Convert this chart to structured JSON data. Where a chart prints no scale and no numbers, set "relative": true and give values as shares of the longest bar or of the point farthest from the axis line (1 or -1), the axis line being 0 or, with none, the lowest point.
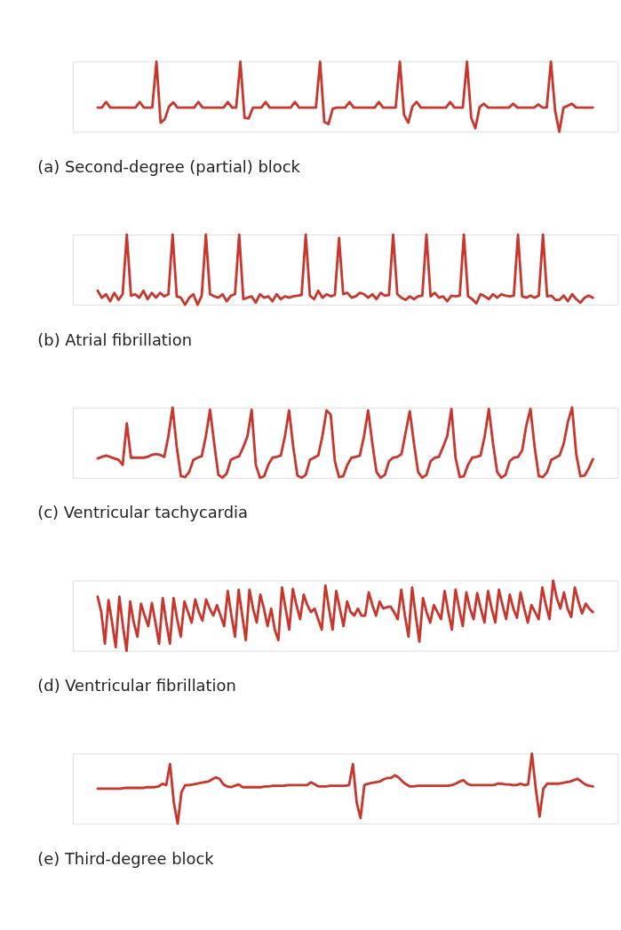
{
  "chart_data": [
    {
      "type": "line",
      "relative": true,
      "title": "(a)  Second-degree (partial) block",
      "grid": false,
      "marker": "none",
      "line_style": "solid",
      "categories": [
        null,
        null,
        null,
        null,
        null,
        null,
        null,
        null,
        null,
        null,
        null,
        null,
        null,
        null,
        null,
        null,
        null,
        null,
        null,
        null,
        null,
        null,
        null,
        null,
        null,
        null,
        null,
        null,
        null,
        null,
        null,
        null,
        null,
        null,
        null,
        null,
        null,
        null,
        null,
        null,
        null,
        null,
        null,
        null,
        null,
        null,
        null,
        null,
        null,
        null,
        null,
        null,
        null,
        null,
        null,
        null,
        null,
        null,
        null,
        null,
        null,
        null,
        null,
        null,
        null,
        null,
        null,
        null,
        null,
        null,
        null,
        null,
        null,
        null,
        null,
        null,
        null,
        null,
        null,
        null,
        null,
        null,
        null,
        null,
        null,
        null,
        null,
        null,
        null,
        null,
        null,
        null,
        null,
        null,
        null,
        null,
        null,
        null,
        null,
        null,
        null,
        null,
        null,
        null,
        null,
        null,
        null,
        null,
        null,
        null,
        null,
        null,
        null,
        null,
        null,
        null,
        null,
        null,
        null
      ],
      "series": [
        {
          "color": "#c8372d",
          "values": [
            0.345,
            0.345,
            0.425,
            0.345,
            0.345,
            0.345,
            0.345,
            0.345,
            0.345,
            0.345,
            0.425,
            0.345,
            0.345,
            0.345,
            1,
            0.13,
            0.18,
            0.36,
            0.42,
            0.345,
            0.345,
            0.345,
            0.345,
            0.345,
            0.425,
            0.345,
            0.345,
            0.345,
            0.345,
            0.345,
            0.345,
            0.425,
            0.345,
            0.345,
            1,
            0.2,
            0.19,
            0.345,
            0.345,
            0.345,
            0.425,
            0.345,
            0.345,
            0.345,
            0.345,
            0.345,
            0.345,
            0.425,
            0.345,
            0.345,
            0.345,
            0.345,
            0.345,
            1,
            0.14,
            0.11,
            0.33,
            0.345,
            0.345,
            0.345,
            0.425,
            0.345,
            0.345,
            0.345,
            0.345,
            0.345,
            0.345,
            0.425,
            0.345,
            0.345,
            0.345,
            0.345,
            1,
            0.24,
            0.13,
            0.36,
            0.425,
            0.345,
            0.345,
            0.345,
            0.345,
            0.345,
            0.345,
            0.345,
            0.425,
            0.345,
            0.345,
            0.345,
            1,
            0.2,
            0.05,
            0.35,
            0.4,
            0.345,
            0.345,
            0.345,
            0.345,
            0.345,
            0.345,
            0.4,
            0.345,
            0.345,
            0.345,
            0.345,
            0.345,
            0.39,
            0.345,
            0.345,
            1,
            0.3,
            0,
            0.345,
            0.37,
            0.4,
            0.345,
            0.345,
            0.345,
            0.345,
            0.345
          ]
        }
      ]
    },
    {
      "type": "line",
      "relative": true,
      "title": "(b)  Atrial fibrillation",
      "grid": false,
      "marker": "none",
      "line_style": "solid",
      "categories": [
        null,
        null,
        null,
        null,
        null,
        null,
        null,
        null,
        null,
        null,
        null,
        null,
        null,
        null,
        null,
        null,
        null,
        null,
        null,
        null,
        null,
        null,
        null,
        null,
        null,
        null,
        null,
        null,
        null,
        null,
        null,
        null,
        null,
        null,
        null,
        null,
        null,
        null,
        null,
        null,
        null,
        null,
        null,
        null,
        null,
        null,
        null,
        null,
        null,
        null,
        null,
        null,
        null,
        null,
        null,
        null,
        null,
        null,
        null,
        null,
        null,
        null,
        null,
        null,
        null,
        null,
        null,
        null,
        null,
        null,
        null,
        null,
        null,
        null,
        null,
        null,
        null,
        null,
        null,
        null,
        null,
        null,
        null,
        null,
        null,
        null,
        null,
        null,
        null,
        null,
        null,
        null,
        null,
        null,
        null,
        null,
        null,
        null,
        null,
        null,
        null,
        null,
        null,
        null,
        null,
        null,
        null,
        null,
        null,
        null,
        null,
        null,
        null,
        null,
        null,
        null,
        null,
        null,
        null,
        null
      ],
      "series": [
        {
          "color": "#c8372d",
          "values": [
            0.2,
            0.1,
            0.15,
            0.05,
            0.17,
            0.07,
            0.15,
            1,
            0.13,
            0.15,
            0.1,
            0.2,
            0.08,
            0.17,
            0.1,
            0.17,
            0.12,
            0.15,
            1,
            0.12,
            0.1,
            0,
            0.1,
            0.15,
            0,
            0.13,
            1,
            0.15,
            0.12,
            0.1,
            0.15,
            0.05,
            0.13,
            0.15,
            1,
            0.08,
            0.1,
            0.12,
            0.03,
            0.15,
            0.1,
            0.12,
            0.05,
            0.15,
            0.08,
            0.12,
            0.1,
            0.12,
            0.13,
            0.14,
            1,
            0.13,
            0.08,
            0.2,
            0.1,
            0.15,
            0.12,
            0.14,
            0.95,
            0.15,
            0.17,
            0.1,
            0.12,
            0.17,
            0.15,
            0.1,
            0.15,
            0.08,
            0.17,
            0.13,
            0.14,
            1,
            0.15,
            0.1,
            0.07,
            0.12,
            0.08,
            0.12,
            0.13,
            1,
            0.12,
            0.17,
            0.1,
            0.12,
            0.05,
            0.13,
            0.12,
            0.13,
            1,
            0.12,
            0.08,
            0.02,
            0.15,
            0.12,
            0.08,
            0.15,
            0.1,
            0.15,
            0.13,
            0.12,
            0.13,
            1,
            0.12,
            0.1,
            0.13,
            0.1,
            0.13,
            1,
            0.12,
            0.13,
            0.07,
            0.07,
            0.13,
            0.05,
            0.15,
            0.08,
            0.03,
            0.1,
            0.13,
            0.1
          ]
        }
      ]
    },
    {
      "type": "line",
      "relative": true,
      "title": "(c)  Ventricular tachycardia",
      "grid": false,
      "marker": "none",
      "line_style": "solid",
      "categories": [
        null,
        null,
        null,
        null,
        null,
        null,
        null,
        null,
        null,
        null,
        null,
        null,
        null,
        null,
        null,
        null,
        null,
        null,
        null,
        null,
        null,
        null,
        null,
        null,
        null,
        null,
        null,
        null,
        null,
        null,
        null,
        null,
        null,
        null,
        null,
        null,
        null,
        null,
        null,
        null,
        null,
        null,
        null,
        null,
        null,
        null,
        null,
        null,
        null,
        null,
        null,
        null,
        null,
        null,
        null,
        null,
        null,
        null,
        null,
        null,
        null,
        null,
        null,
        null,
        null,
        null,
        null,
        null,
        null,
        null,
        null,
        null,
        null,
        null,
        null,
        null,
        null,
        null,
        null,
        null,
        null,
        null,
        null,
        null,
        null,
        null,
        null,
        null,
        null,
        null,
        null,
        null,
        null,
        null,
        null,
        null,
        null,
        null,
        null,
        null,
        null,
        null,
        null,
        null,
        null,
        null,
        null,
        null,
        null,
        null,
        null,
        null,
        null,
        null,
        null,
        null,
        null,
        null,
        null,
        null
      ],
      "series": [
        {
          "color": "#c8372d",
          "values": [
            0.29,
            0.31,
            0.33,
            0.31,
            0.29,
            0.27,
            0.2,
            0.78,
            0.3,
            0.3,
            0.3,
            0.3,
            0.31,
            0.34,
            0.35,
            0.34,
            0.31,
            0.6,
            1,
            0.45,
            0.04,
            0.03,
            0.1,
            0.27,
            0.3,
            0.32,
            0.6,
            0.97,
            0.5,
            0.06,
            0.02,
            0.08,
            0.27,
            0.3,
            0.32,
            0.45,
            0.6,
            0.97,
            0.2,
            0.02,
            0.04,
            0.2,
            0.3,
            0.31,
            0.33,
            0.6,
            0.96,
            0.45,
            0.05,
            0.02,
            0.06,
            0.27,
            0.3,
            0.33,
            0.6,
            0.96,
            0.9,
            0.25,
            0.03,
            0.04,
            0.2,
            0.3,
            0.31,
            0.33,
            0.6,
            0.96,
            0.5,
            0.1,
            0.02,
            0.06,
            0.25,
            0.3,
            0.31,
            0.35,
            0.65,
            0.95,
            0.5,
            0.1,
            0.02,
            0.06,
            0.25,
            0.3,
            0.31,
            0.45,
            0.6,
            0.98,
            0.3,
            0.03,
            0.04,
            0.2,
            0.3,
            0.31,
            0.33,
            0.6,
            0.98,
            0.5,
            0.1,
            0.02,
            0.06,
            0.25,
            0.3,
            0.31,
            0.4,
            0.75,
            0.98,
            0.45,
            0.04,
            0.03,
            0.1,
            0.27,
            0.3,
            0.33,
            0.5,
            0.8,
            1,
            0.35,
            0.04,
            0.05,
            0.15,
            0.28
          ]
        }
      ]
    },
    {
      "type": "line",
      "relative": true,
      "title": "(d)  Ventricular fibrillation",
      "grid": false,
      "marker": "none",
      "line_style": "solid",
      "categories": [
        null,
        null,
        null,
        null,
        null,
        null,
        null,
        null,
        null,
        null,
        null,
        null,
        null,
        null,
        null,
        null,
        null,
        null,
        null,
        null,
        null,
        null,
        null,
        null,
        null,
        null,
        null,
        null,
        null,
        null,
        null,
        null,
        null,
        null,
        null,
        null,
        null,
        null,
        null,
        null,
        null,
        null,
        null,
        null,
        null,
        null,
        null,
        null,
        null,
        null,
        null,
        null,
        null,
        null,
        null,
        null,
        null,
        null,
        null,
        null,
        null,
        null,
        null,
        null,
        null,
        null,
        null,
        null,
        null,
        null,
        null,
        null,
        null,
        null,
        null,
        null,
        null,
        null,
        null,
        null,
        null,
        null,
        null,
        null,
        null,
        null,
        null,
        null,
        null,
        null,
        null,
        null,
        null,
        null,
        null,
        null,
        null,
        null,
        null,
        null,
        null,
        null,
        null,
        null,
        null,
        null,
        null,
        null,
        null,
        null,
        null,
        null,
        null,
        null,
        null,
        null,
        null,
        null,
        null,
        null,
        null,
        null,
        null,
        null,
        null,
        null,
        null,
        null,
        null,
        null,
        null,
        null,
        null,
        null,
        null,
        null,
        null,
        null
      ],
      "series": [
        {
          "color": "#c8372d",
          "values": [
            0.77,
            0.55,
            0.1,
            0.72,
            0.4,
            0.05,
            0.77,
            0.35,
            0,
            0.7,
            0.4,
            0.2,
            0.67,
            0.5,
            0.35,
            0.68,
            0.4,
            0.1,
            0.75,
            0.4,
            0.1,
            0.75,
            0.45,
            0.2,
            0.7,
            0.55,
            0.4,
            0.73,
            0.55,
            0.43,
            0.73,
            0.6,
            0.5,
            0.65,
            0.5,
            0.35,
            0.85,
            0.5,
            0.2,
            0.87,
            0.5,
            0.15,
            0.87,
            0.6,
            0.4,
            0.8,
            0.6,
            0.35,
            0.6,
            0.3,
            0.15,
            0.9,
            0.6,
            0.3,
            0.88,
            0.65,
            0.45,
            0.8,
            0.65,
            0.55,
            0.6,
            0.45,
            0.3,
            0.93,
            0.6,
            0.3,
            0.85,
            0.6,
            0.35,
            0.7,
            0.55,
            0.5,
            0.6,
            0.5,
            0.5,
            0.83,
            0.65,
            0.5,
            0.7,
            0.6,
            0.62,
            0.63,
            0.55,
            0.45,
            0.87,
            0.5,
            0.2,
            0.9,
            0.5,
            0.13,
            0.75,
            0.55,
            0.4,
            0.65,
            0.55,
            0.45,
            0.85,
            0.55,
            0.3,
            0.87,
            0.6,
            0.35,
            0.83,
            0.6,
            0.45,
            0.82,
            0.6,
            0.4,
            0.85,
            0.6,
            0.4,
            0.87,
            0.65,
            0.45,
            0.8,
            0.6,
            0.47,
            0.83,
            0.6,
            0.4,
            0.65,
            0.55,
            0.45,
            0.9,
            0.65,
            0.45,
            1,
            0.75,
            0.6,
            0.83,
            0.6,
            0.48,
            0.9,
            0.7,
            0.53,
            0.67,
            0.6,
            0.55
          ]
        }
      ]
    },
    {
      "type": "line",
      "relative": true,
      "title": "(e)  Third-degree block",
      "grid": false,
      "marker": "none",
      "line_style": "solid",
      "categories": [
        null,
        null,
        null,
        null,
        null,
        null,
        null,
        null,
        null,
        null,
        null,
        null,
        null,
        null,
        null,
        null,
        null,
        null,
        null,
        null,
        null,
        null,
        null,
        null,
        null,
        null,
        null,
        null,
        null,
        null,
        null,
        null,
        null,
        null,
        null,
        null,
        null,
        null,
        null,
        null,
        null,
        null,
        null,
        null,
        null,
        null,
        null,
        null,
        null,
        null,
        null,
        null,
        null,
        null,
        null,
        null,
        null,
        null,
        null,
        null,
        null,
        null,
        null,
        null,
        null,
        null,
        null,
        null,
        null,
        null,
        null,
        null,
        null,
        null,
        null,
        null,
        null,
        null,
        null,
        null,
        null,
        null,
        null,
        null,
        null,
        null,
        null,
        null,
        null,
        null,
        null,
        null,
        null,
        null,
        null,
        null,
        null,
        null,
        null,
        null,
        null,
        null,
        null,
        null,
        null,
        null,
        null,
        null,
        null,
        null,
        null,
        null,
        null,
        null,
        null,
        null,
        null,
        null,
        null,
        null,
        null,
        null,
        null,
        null,
        null,
        null,
        null,
        null,
        null,
        null,
        null
      ],
      "series": [
        {
          "color": "#c8372d",
          "values": [
            0.5,
            0.5,
            0.5,
            0.5,
            0.5,
            0.5,
            0.5,
            0.51,
            0.51,
            0.51,
            0.51,
            0.51,
            0.51,
            0.52,
            0.52,
            0.52,
            0.53,
            0.57,
            0.55,
            0.85,
            0.3,
            0,
            0.45,
            0.55,
            0.55,
            0.56,
            0.57,
            0.58,
            0.59,
            0.6,
            0.63,
            0.66,
            0.64,
            0.56,
            0.53,
            0.52,
            0.54,
            0.56,
            0.52,
            0.52,
            0.52,
            0.52,
            0.52,
            0.52,
            0.53,
            0.53,
            0.54,
            0.54,
            0.54,
            0.54,
            0.55,
            0.55,
            0.55,
            0.55,
            0.55,
            0.55,
            0.59,
            0.56,
            0.53,
            0.53,
            0.53,
            0.54,
            0.54,
            0.54,
            0.54,
            0.54,
            0.55,
            0.85,
            0.3,
            0.08,
            0.55,
            0.57,
            0.58,
            0.59,
            0.6,
            0.63,
            0.65,
            0.65,
            0.69,
            0.66,
            0.6,
            0.56,
            0.53,
            0.53,
            0.54,
            0.54,
            0.54,
            0.54,
            0.54,
            0.54,
            0.54,
            0.54,
            0.54,
            0.55,
            0.57,
            0.6,
            0.62,
            0.57,
            0.55,
            0.55,
            0.55,
            0.55,
            0.55,
            0.55,
            0.55,
            0.57,
            0.57,
            0.56,
            0.56,
            0.55,
            0.55,
            0.57,
            0.55,
            0.56,
            1,
            0.5,
            0.1,
            0.5,
            0.57,
            0.57,
            0.57,
            0.57,
            0.58,
            0.59,
            0.6,
            0.62,
            0.64,
            0.6,
            0.56,
            0.54,
            0.53
          ]
        }
      ]
    }
  ]
}
